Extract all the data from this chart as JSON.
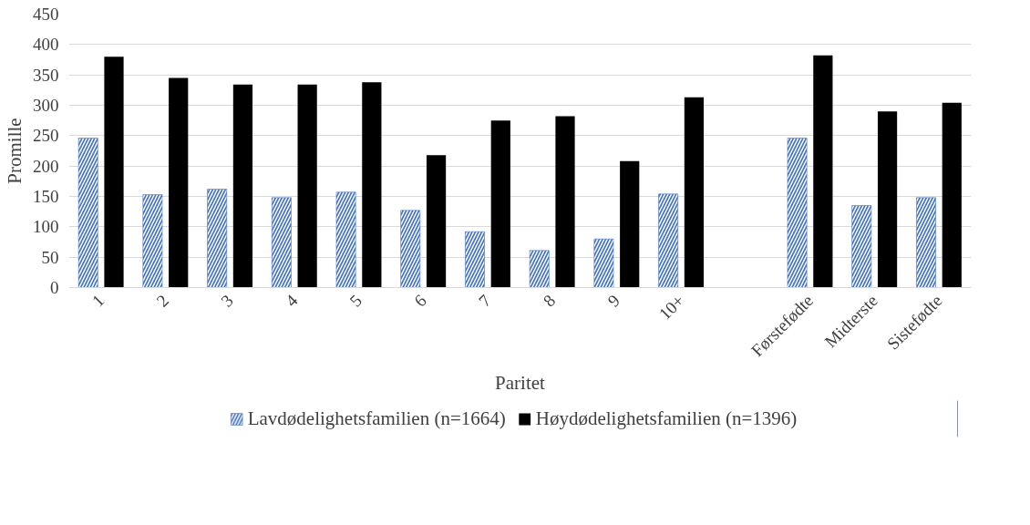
{
  "chart_data": {
    "type": "bar",
    "xlabel": "Paritet",
    "ylabel": "Promille",
    "categories": [
      "1",
      "2",
      "3",
      "4",
      "5",
      "6",
      "7",
      "8",
      "9",
      "10+",
      null,
      "Førstefødte",
      "Midterste",
      "Sistefødte"
    ],
    "series": [
      {
        "name": "Lavdødelighetsfamilien (n=1664)",
        "color": "#4472c4",
        "values": [
          246,
          153,
          162,
          148,
          157,
          127,
          92,
          61,
          80,
          154,
          null,
          246,
          135,
          148
        ]
      },
      {
        "name": "Høydødelighetsfamilien (n=1396)",
        "color": "#000000",
        "values": [
          380,
          345,
          334,
          334,
          338,
          218,
          275,
          282,
          208,
          313,
          null,
          382,
          290,
          304
        ]
      }
    ],
    "ylim": [
      0,
      450
    ],
    "yticks": [
      0,
      50,
      100,
      150,
      200,
      250,
      300,
      350,
      400,
      450
    ],
    "grid": "y",
    "legend": "bottom"
  }
}
